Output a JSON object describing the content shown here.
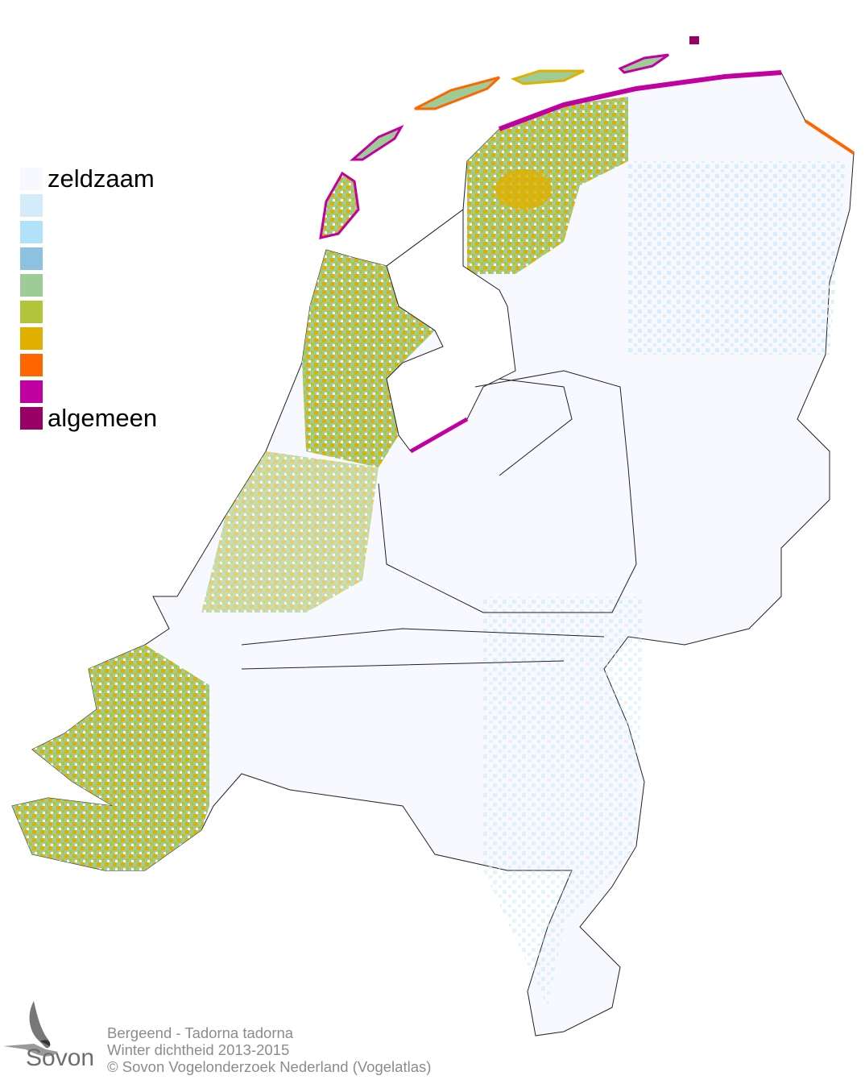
{
  "legend": {
    "classes": [
      {
        "label": "zeldzaam",
        "color": "#f8f8ff"
      },
      {
        "label": "",
        "color": "#d4ebf9"
      },
      {
        "label": "",
        "color": "#b2e2f9"
      },
      {
        "label": "",
        "color": "#8cc2e0"
      },
      {
        "label": "",
        "color": "#9dcc97"
      },
      {
        "label": "",
        "color": "#b2c43a"
      },
      {
        "label": "",
        "color": "#e0b000"
      },
      {
        "label": "",
        "color": "#ff6600"
      },
      {
        "label": "",
        "color": "#c000a0"
      },
      {
        "label": "algemeen",
        "color": "#990066"
      }
    ]
  },
  "footer": {
    "species": "Bergeend - Tadorna tadorna",
    "subtitle": "Winter dichtheid 2013-2015",
    "copyright": "© Sovon Vogelonderzoek Nederland (Vogelatlas)"
  },
  "logo": {
    "text": "Sovon",
    "icon": "swallow-icon"
  }
}
